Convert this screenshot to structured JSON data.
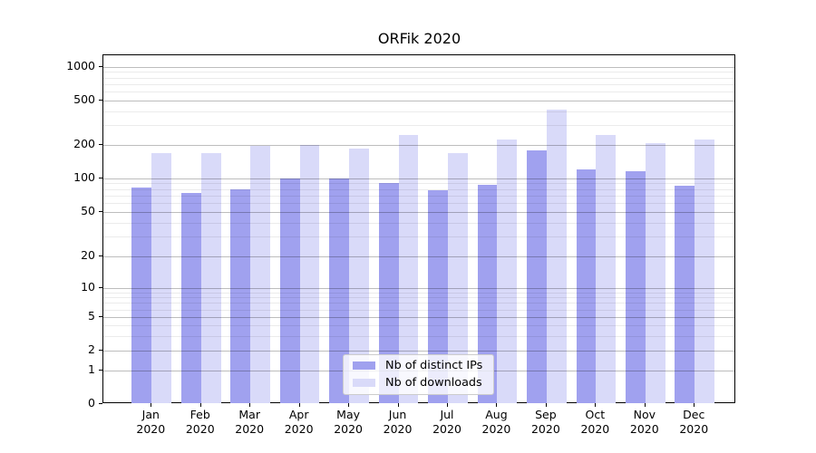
{
  "title": "ORFik 2020",
  "legend": {
    "items": [
      {
        "label": "Nb of distinct IPs",
        "color": "#a0a1ef"
      },
      {
        "label": "Nb of downloads",
        "color": "#d9daf9"
      }
    ]
  },
  "y_axis": {
    "tick_labels": [
      "1000",
      "500",
      "200",
      "100",
      "50",
      "20",
      "10",
      "5",
      "2",
      "1",
      "0"
    ]
  },
  "x_axis": {
    "month_labels": [
      "Jan",
      "Feb",
      "Mar",
      "Apr",
      "May",
      "Jun",
      "Jul",
      "Aug",
      "Sep",
      "Oct",
      "Nov",
      "Dec"
    ],
    "year_label": "2020"
  },
  "chart_data": {
    "type": "bar",
    "title": "ORFik 2020",
    "categories": [
      "Jan 2020",
      "Feb 2020",
      "Mar 2020",
      "Apr 2020",
      "May 2020",
      "Jun 2020",
      "Jul 2020",
      "Aug 2020",
      "Sep 2020",
      "Oct 2020",
      "Nov 2020",
      "Dec 2020"
    ],
    "series": [
      {
        "name": "Nb of distinct IPs",
        "color": "#a0a1ef",
        "values": [
          82,
          73,
          79,
          100,
          100,
          91,
          78,
          88,
          177,
          120,
          115,
          86
        ]
      },
      {
        "name": "Nb of downloads",
        "color": "#d9daf9",
        "values": [
          167,
          167,
          195,
          199,
          185,
          243,
          167,
          224,
          413,
          246,
          205,
          224
        ]
      }
    ],
    "xlabel": "",
    "ylabel": "",
    "yscale": "log (compressed/linear below 10, zero shown at baseline)",
    "yticks": [
      0,
      1,
      2,
      5,
      10,
      20,
      50,
      100,
      200,
      500,
      1000
    ],
    "ylim": [
      0,
      1200
    ],
    "grid": "horizontal major + log minors",
    "legend_position": "lower center"
  }
}
